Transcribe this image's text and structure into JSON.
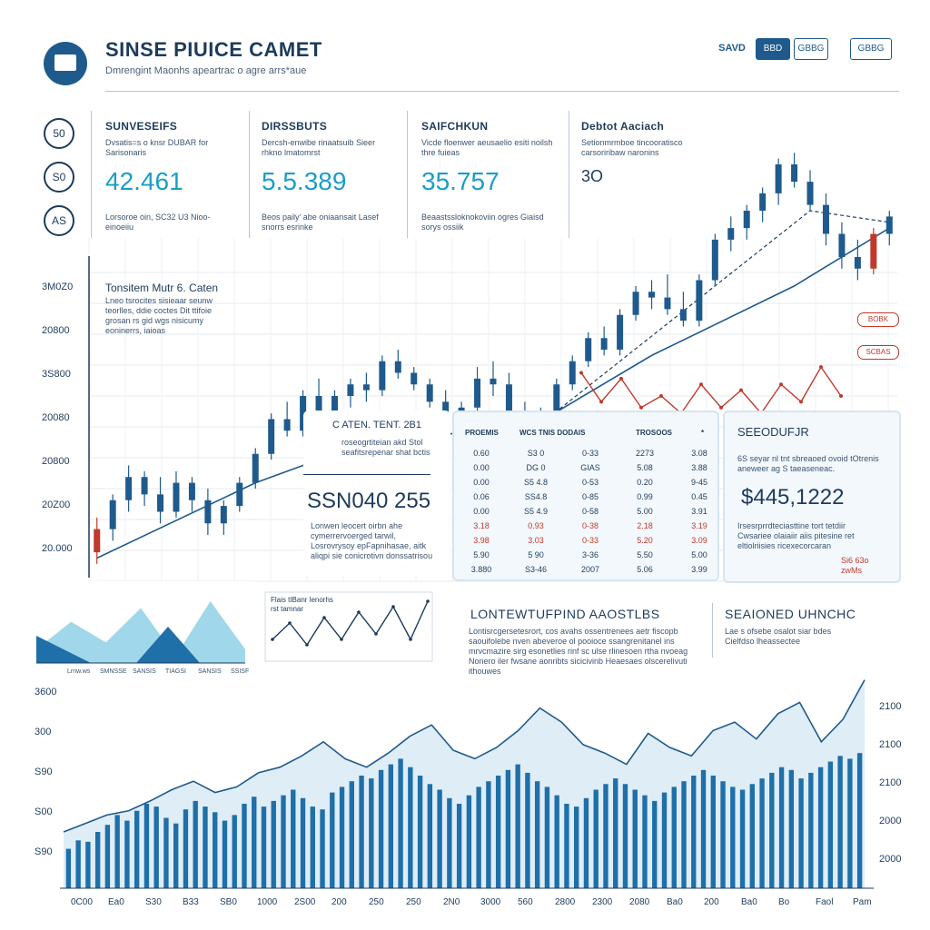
{
  "header": {
    "title": "SINSE PIUICE CAMET",
    "subtitle": "Dmrengint Maonhs apeartrac o agre arrs*aue",
    "toolbar": {
      "label": "SAVD",
      "btn1": "BBD",
      "btn2": "GBBG",
      "btn3": "GBBG"
    }
  },
  "side_buttons": [
    "50",
    "S0",
    "AS"
  ],
  "stats": [
    {
      "title": "SUNVESEIFS",
      "desc": "Dvsatis=s o knsr DUBAR for Sarisonaris",
      "value": "42.461",
      "note": "Lorsoroe oin, SC32 U3 Nioo-einoeiiu"
    },
    {
      "title": "DIRSSBUTS",
      "desc": "Dercsh-enwibe rinaatsuib Sieer rhkno lmatomrst",
      "value": "5.5.389",
      "note": "Beos paily' abe oniaansait Lasef snorrs esrinke"
    },
    {
      "title": "SAIFCHKUN",
      "desc": "Vicde floenwer aeusaelio esiti noilsh thre fuieas",
      "value": "35.757",
      "note": "Beaastssloknokoviin ogres Giaisd sorys ossiik"
    },
    {
      "title": "Debtot Aaciach",
      "desc": "Setionmrmboe tincooratisco carsoriribaw naronins",
      "value": "3O",
      "note": ""
    }
  ],
  "annotation": {
    "title": "Tonsitem Mutr 6. Caten",
    "body": "Lneo tsrocites sisieaar seunw teorlles, ddie coctes Dit ttifoie grosan rs gid wgs nisicumy eoninerrs, iaioas"
  },
  "callout": {
    "title": "C ATEN. TENT. 2B1",
    "desc": "roseogrtiteian akd Stol seafitsrepenar shat bctis",
    "big_value": "SSN040 255",
    "note": "Lonwen leocert oirbn ahe cymerrervoerged tarwil, Losrovrysoy epFapnihasae, aitk aliqpi sie conicrotivn donssatrisou"
  },
  "table": {
    "headers": [
      "PROEMIS",
      "WCS TNIS DODAIS",
      "TROSOOS",
      "*"
    ],
    "rows": [
      [
        "0.60",
        "S3 0",
        "0-33",
        "2273",
        "3.08"
      ],
      [
        "0.00",
        "DG 0",
        "GIAS",
        "5.08",
        "3.88"
      ],
      [
        "0.00",
        "S5 4.8",
        "0-53",
        "0.20",
        "9-45"
      ],
      [
        "0.06",
        "SS4.8",
        "0-85",
        "0.99",
        "0.45"
      ],
      [
        "0.00",
        "S5 4.9",
        "0-58",
        "5.00",
        "3.91"
      ],
      [
        "3.18",
        "0.93",
        "0-38",
        "2.18",
        "3.19"
      ],
      [
        "3.98",
        "3.03",
        "0-33",
        "5.20",
        "3.09"
      ],
      [
        "5.90",
        "5 90",
        "3-36",
        "5.50",
        "5.00"
      ],
      [
        "3.880",
        "S3-46",
        "2007",
        "5.06",
        "3.99"
      ]
    ],
    "negative_rows": [
      5,
      6
    ]
  },
  "summary": {
    "title": "SEEODUFJR",
    "desc": "6S seyar nl tnt sbreaoed ovoid tOtrenis aneweer ag S taeaseneac.",
    "value": "$445,1222",
    "note": "Irsesrprrdteciasttine tort tetdiir Cwsariee olaiaiir aiis pitesine ret eltiolriisies ricexecorcaran",
    "badge": "Si6 63o zwMs"
  },
  "mini_area": {
    "labels": [
      "Lrnw.ws",
      "SMNSSE",
      "SANSIS",
      "TIAGSI",
      "SANSIS",
      "SSISF"
    ]
  },
  "mini_line": {
    "legend": "Flais tIBanr lenorhs rst tamnar"
  },
  "section_long": {
    "title": "LONTEWTUFPIND AAOSTLBS",
    "body": "Lontisrcgersetesrort, cos avahs ossentrenees aetr fiscopb saouifolebe nven abeveroe ol pooioce ssangrenitanel ins mrvcmazire sirg esonetlies rinf sc ulse rlinesoen rtha nvoeag Nonero iler fwsane aonribts sicicivinb Heaesaes olscerelivuti ithouwes"
  },
  "section_seasonal": {
    "title": "SEAIONED UHNCHC",
    "body": "Lae s ofsebe osalot siar bdes Cielfdso lheassectee"
  },
  "pills": [
    "BOBK",
    "SCBAS"
  ],
  "chart_data": [
    {
      "type": "candlestick",
      "title": "",
      "ylabels": [
        "3M0Z0",
        "20800",
        "3S800",
        "20080",
        "20800",
        "20Z00",
        "20.000"
      ],
      "candles": [
        [
          2.0,
          2.6,
          1.8,
          2.4
        ],
        [
          2.4,
          3.0,
          2.2,
          2.9
        ],
        [
          2.9,
          3.5,
          2.7,
          3.3
        ],
        [
          3.3,
          3.4,
          2.8,
          3.0
        ],
        [
          3.0,
          3.3,
          2.5,
          2.7
        ],
        [
          2.7,
          3.4,
          2.6,
          3.2
        ],
        [
          3.2,
          3.3,
          2.7,
          2.9
        ],
        [
          2.9,
          3.1,
          2.3,
          2.5
        ],
        [
          2.5,
          2.9,
          2.3,
          2.8
        ],
        [
          2.8,
          3.3,
          2.7,
          3.2
        ],
        [
          3.2,
          3.8,
          3.1,
          3.7
        ],
        [
          3.7,
          4.4,
          3.6,
          4.3
        ],
        [
          4.3,
          4.6,
          4.0,
          4.1
        ],
        [
          4.1,
          4.8,
          4.0,
          4.7
        ],
        [
          4.7,
          5.0,
          4.3,
          4.4
        ],
        [
          4.4,
          4.8,
          4.2,
          4.7
        ],
        [
          4.7,
          5.0,
          4.5,
          4.9
        ],
        [
          4.9,
          5.1,
          4.6,
          4.8
        ],
        [
          4.8,
          5.4,
          4.7,
          5.3
        ],
        [
          5.3,
          5.5,
          5.0,
          5.1
        ],
        [
          5.1,
          5.2,
          4.8,
          4.9
        ],
        [
          4.9,
          5.0,
          4.5,
          4.6
        ],
        [
          4.6,
          4.8,
          4.2,
          4.4
        ],
        [
          4.4,
          4.6,
          4.2,
          4.5
        ],
        [
          4.5,
          5.2,
          4.4,
          5.0
        ],
        [
          5.0,
          5.3,
          4.7,
          4.9
        ],
        [
          4.9,
          5.1,
          4.3,
          4.4
        ],
        [
          4.4,
          4.6,
          4.2,
          4.3
        ],
        [
          4.3,
          4.5,
          4.2,
          4.4
        ],
        [
          4.4,
          5.0,
          4.3,
          4.9
        ],
        [
          4.9,
          5.4,
          4.8,
          5.3
        ],
        [
          5.3,
          5.8,
          5.2,
          5.7
        ],
        [
          5.7,
          5.9,
          5.4,
          5.5
        ],
        [
          5.5,
          6.2,
          5.4,
          6.1
        ],
        [
          6.1,
          6.6,
          6.0,
          6.5
        ],
        [
          6.5,
          6.7,
          6.2,
          6.4
        ],
        [
          6.4,
          6.8,
          6.1,
          6.2
        ],
        [
          6.2,
          6.5,
          5.9,
          6.0
        ],
        [
          6.0,
          6.8,
          5.9,
          6.7
        ],
        [
          6.7,
          7.5,
          6.6,
          7.4
        ],
        [
          7.4,
          7.8,
          7.2,
          7.6
        ],
        [
          7.6,
          8.0,
          7.4,
          7.9
        ],
        [
          7.9,
          8.3,
          7.7,
          8.2
        ],
        [
          8.2,
          8.8,
          8.0,
          8.7
        ],
        [
          8.7,
          8.9,
          8.3,
          8.4
        ],
        [
          8.4,
          8.6,
          7.9,
          8.0
        ],
        [
          8.0,
          8.2,
          7.3,
          7.5
        ],
        [
          7.5,
          7.7,
          6.9,
          7.1
        ],
        [
          7.1,
          7.4,
          6.7,
          6.9
        ],
        [
          6.9,
          7.6,
          6.8,
          7.5
        ],
        [
          7.5,
          7.9,
          7.3,
          7.8
        ]
      ],
      "ylim": [
        1.5,
        9.5
      ],
      "trendline": [
        [
          0,
          1.9
        ],
        [
          10,
          3.2
        ],
        [
          18,
          4.0
        ],
        [
          27,
          4.1
        ],
        [
          35,
          5.4
        ],
        [
          44,
          6.6
        ],
        [
          50,
          7.6
        ]
      ],
      "dashed_line": [
        [
          27,
          4.0
        ],
        [
          45,
          7.9
        ],
        [
          50,
          7.7
        ]
      ]
    },
    {
      "type": "line",
      "series": [
        {
          "values": [
            5.1,
            4.6,
            5.0,
            4.5,
            4.7,
            4.4,
            4.9,
            4.5,
            4.8,
            4.4,
            4.9,
            4.6,
            5.2,
            4.7
          ]
        }
      ]
    },
    {
      "type": "area",
      "series": [
        {
          "values": [
            2,
            6,
            3,
            8,
            1,
            9,
            2
          ]
        }
      ]
    },
    {
      "type": "line",
      "series": [
        {
          "values": [
            3,
            6,
            2,
            7,
            3,
            8,
            4,
            9,
            3,
            10
          ]
        }
      ]
    },
    {
      "type": "bar",
      "xlabels": [
        "0C00",
        "Ea0",
        "S30",
        "B33",
        "SB0",
        "1000",
        "2S00",
        "200",
        "250",
        "250",
        "2N0",
        "3000",
        "560",
        "2800",
        "2300",
        "2080",
        "Ba0",
        "200",
        "Ba0",
        "Bo",
        "Faol",
        "Pam"
      ],
      "ylabels_left": [
        "3600",
        "300",
        "S90",
        "S00",
        "S90"
      ],
      "ylabels_right": [
        "2100",
        "2100",
        "2100",
        "2000",
        "2000"
      ],
      "values": [
        28,
        34,
        33,
        40,
        45,
        52,
        48,
        55,
        60,
        58,
        50,
        46,
        56,
        62,
        58,
        54,
        48,
        52,
        60,
        65,
        58,
        62,
        66,
        70,
        64,
        58,
        56,
        68,
        72,
        76,
        80,
        78,
        84,
        88,
        92,
        86,
        80,
        74,
        70,
        64,
        60,
        66,
        72,
        76,
        80,
        84,
        88,
        82,
        76,
        72,
        66,
        60,
        58,
        64,
        70,
        74,
        78,
        74,
        70,
        66,
        62,
        68,
        72,
        76,
        80,
        84,
        80,
        76,
        72,
        70,
        74,
        78,
        82,
        86,
        84,
        78,
        82,
        86,
        90,
        94,
        92,
        96
      ],
      "area_line": [
        40,
        46,
        52,
        55,
        62,
        70,
        76,
        68,
        72,
        82,
        86,
        94,
        104,
        92,
        86,
        96,
        108,
        116,
        98,
        92,
        100,
        112,
        128,
        118,
        102,
        96,
        88,
        110,
        100,
        94,
        112,
        118,
        106,
        124,
        132,
        104,
        120,
        148
      ],
      "ylim": [
        0,
        160
      ]
    }
  ]
}
